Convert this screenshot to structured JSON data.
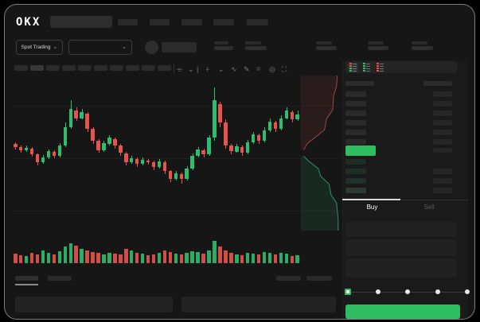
{
  "app": {
    "logo": "OKX"
  },
  "header": {
    "market_selector": {
      "label": "Spot Trading",
      "chevron": "⌄"
    },
    "pair_select_chevron": "⌄"
  },
  "toolbar": {
    "icons": [
      {
        "name": "candle-style-icon",
        "glyph": "⌯"
      },
      {
        "name": "chevron-down-icon",
        "glyph": "⌄"
      },
      {
        "name": "divider",
        "glyph": "|"
      },
      {
        "name": "indicator-icon",
        "glyph": "⍭"
      },
      {
        "name": "chevron-down-icon",
        "glyph": "⌄"
      },
      {
        "name": "line-tool-icon",
        "glyph": "∿"
      },
      {
        "name": "draw-icon",
        "glyph": "✎"
      },
      {
        "name": "camera-icon",
        "glyph": "⌾"
      },
      {
        "name": "settings-icon",
        "glyph": "◎"
      },
      {
        "name": "fullscreen-icon",
        "glyph": "⛶"
      }
    ]
  },
  "orderbook": {
    "accent_green": "#2ebd5f",
    "accent_red": "#e5544f",
    "view_toggles": [
      {
        "name": "book-all-icon",
        "rows": [
          "#e5544f",
          "#e5544f",
          "#2ebd5f",
          "#2ebd5f"
        ],
        "selected": true
      },
      {
        "name": "book-bids-icon",
        "rows": [
          "#2ebd5f",
          "#2ebd5f",
          "#2ebd5f",
          "#2ebd5f"
        ],
        "selected": false
      },
      {
        "name": "book-asks-icon",
        "rows": [
          "#e5544f",
          "#e5544f",
          "#e5544f",
          "#e5544f"
        ],
        "selected": false
      }
    ],
    "ask_rows": 6,
    "bid_rows": 4,
    "bid_row_colors": [
      "#1c2e24",
      "#1d3026",
      "#1f3227",
      "#2b3a31"
    ],
    "ask_row_color": "#2a2a2a",
    "size_col_color": "#262626",
    "tabs": {
      "buy": "Buy",
      "sell": "Sell"
    },
    "slider_stops": 5,
    "submit_label": ""
  },
  "chart_data": {
    "type": "candlestick",
    "title": "",
    "xlabel": "",
    "ylabel": "",
    "price_scale": [
      0,
      100
    ],
    "grid_levels": [
      80.5,
      46.5,
      12.5
    ],
    "colors": {
      "up": "#2ebd70",
      "down": "#e5544f"
    },
    "candles_oclh": [
      [
        56,
        54,
        52.5,
        57
      ],
      [
        54,
        52,
        50.5,
        55
      ],
      [
        52,
        53.5,
        51,
        55
      ],
      [
        53,
        49,
        47.5,
        54
      ],
      [
        49,
        44,
        42,
        50
      ],
      [
        44,
        47,
        43,
        48.5
      ],
      [
        47,
        51.5,
        46,
        52.5
      ],
      [
        51,
        48,
        46.5,
        52
      ],
      [
        48,
        55,
        47,
        56.5
      ],
      [
        55,
        67,
        54,
        70
      ],
      [
        67,
        79,
        66,
        85
      ],
      [
        78,
        73,
        71,
        80
      ],
      [
        73,
        77,
        72,
        79
      ],
      [
        76,
        66,
        64,
        77
      ],
      [
        66,
        58,
        56,
        67
      ],
      [
        58,
        52,
        50,
        59
      ],
      [
        52,
        56.5,
        51,
        58
      ],
      [
        56,
        60,
        55,
        62
      ],
      [
        59,
        55,
        53,
        60
      ],
      [
        55,
        50,
        48,
        56
      ],
      [
        50,
        44,
        42,
        51
      ],
      [
        44,
        46.5,
        43,
        48
      ],
      [
        46,
        43,
        41,
        47
      ],
      [
        43,
        45.5,
        42,
        47
      ],
      [
        45,
        43.8,
        42.5,
        46
      ],
      [
        44,
        41,
        39,
        45
      ],
      [
        41,
        44.5,
        40,
        46
      ],
      [
        44,
        38,
        36,
        45
      ],
      [
        38,
        33,
        31,
        39
      ],
      [
        33,
        36.5,
        32,
        38
      ],
      [
        36,
        33,
        30,
        37
      ],
      [
        33,
        40,
        32,
        41.5
      ],
      [
        40,
        48,
        39,
        49.5
      ],
      [
        48,
        52.5,
        47,
        54
      ],
      [
        52,
        49,
        47,
        53
      ],
      [
        49,
        60,
        48,
        62
      ],
      [
        60,
        85,
        58,
        93
      ],
      [
        82,
        70,
        67,
        84
      ],
      [
        70,
        55,
        53,
        72
      ],
      [
        55,
        51.5,
        49,
        56
      ],
      [
        51,
        54.5,
        50,
        56
      ],
      [
        54,
        50,
        48,
        55
      ],
      [
        50,
        57,
        49,
        58.5
      ],
      [
        57,
        62.5,
        56,
        64
      ],
      [
        62,
        58,
        56,
        63
      ],
      [
        58,
        65,
        57,
        67
      ],
      [
        65,
        70.5,
        64,
        73
      ],
      [
        70,
        66,
        64,
        71
      ],
      [
        66,
        73,
        65,
        75
      ],
      [
        73,
        78,
        72,
        80
      ],
      [
        77,
        72,
        70,
        78
      ],
      [
        72,
        75.5,
        71,
        78
      ]
    ],
    "volumes": [
      40,
      35,
      30,
      45,
      38,
      55,
      42,
      36,
      50,
      70,
      85,
      75,
      60,
      55,
      48,
      42,
      38,
      45,
      40,
      36,
      60,
      52,
      44,
      40,
      35,
      38,
      42,
      55,
      48,
      40,
      36,
      44,
      50,
      46,
      40,
      52,
      95,
      70,
      55,
      42,
      38,
      35,
      45,
      40,
      36,
      48,
      42,
      38,
      44,
      40,
      30,
      34
    ],
    "depth": {
      "asks": [
        [
          88,
          0
        ],
        [
          86,
          7
        ],
        [
          79,
          13
        ],
        [
          77,
          22
        ],
        [
          62,
          28
        ],
        [
          57,
          35
        ],
        [
          34,
          40
        ],
        [
          15,
          44
        ],
        [
          7,
          48
        ]
      ],
      "bids": [
        [
          7,
          52
        ],
        [
          18,
          55
        ],
        [
          42,
          60
        ],
        [
          48,
          65
        ],
        [
          68,
          70
        ],
        [
          73,
          77
        ],
        [
          86,
          82
        ],
        [
          90,
          93
        ],
        [
          90,
          100
        ]
      ],
      "ask_fill": "rgba(190,70,70,0.12)",
      "bid_fill": "rgba(45,180,120,0.12)",
      "ask_stroke": "#9c4a45",
      "bid_stroke": "#2f8f6f"
    }
  }
}
